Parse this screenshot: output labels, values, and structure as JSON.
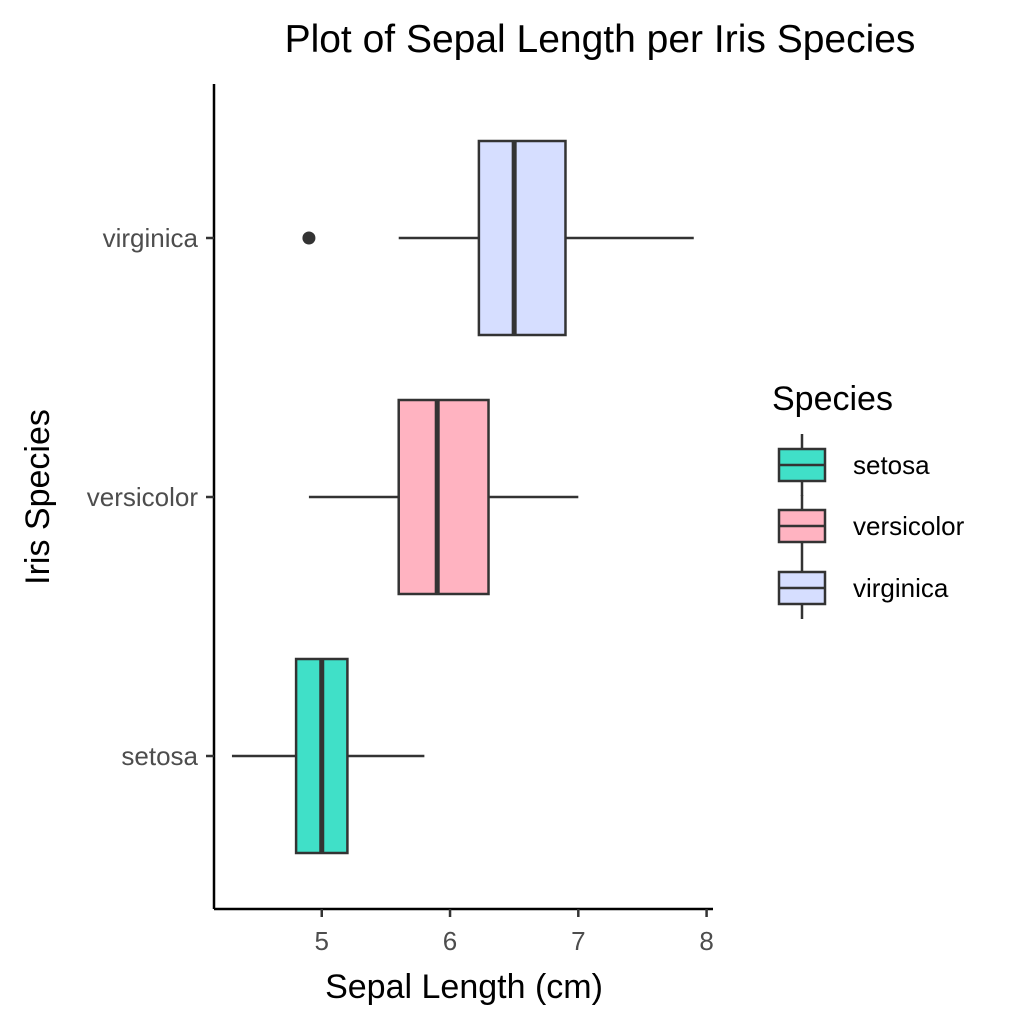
{
  "chart_data": {
    "type": "boxplot",
    "orientation": "horizontal",
    "title": "Plot of Sepal Length  per Iris Species",
    "xlabel": "Sepal Length (cm)",
    "ylabel": "Iris Species",
    "xlim": [
      4.16,
      8.05
    ],
    "xticks": [
      5,
      6,
      7,
      8
    ],
    "categories": [
      "setosa",
      "versicolor",
      "virginica"
    ],
    "series": [
      {
        "name": "setosa",
        "color": "#40E0C8",
        "whisker_low": 4.3,
        "q1": 4.8,
        "median": 5.0,
        "q3": 5.2,
        "whisker_high": 5.8,
        "outliers": []
      },
      {
        "name": "versicolor",
        "color": "#FFB3C1",
        "whisker_low": 4.9,
        "q1": 5.6,
        "median": 5.9,
        "q3": 6.3,
        "whisker_high": 7.0,
        "outliers": []
      },
      {
        "name": "virginica",
        "color": "#D6DEFF",
        "whisker_low": 5.6,
        "q1": 6.225,
        "median": 6.5,
        "q3": 6.9,
        "whisker_high": 7.9,
        "outliers": [
          4.9
        ]
      }
    ],
    "legend": {
      "title": "Species",
      "position": "right",
      "entries": [
        "setosa",
        "versicolor",
        "virginica"
      ]
    },
    "grid": false
  }
}
